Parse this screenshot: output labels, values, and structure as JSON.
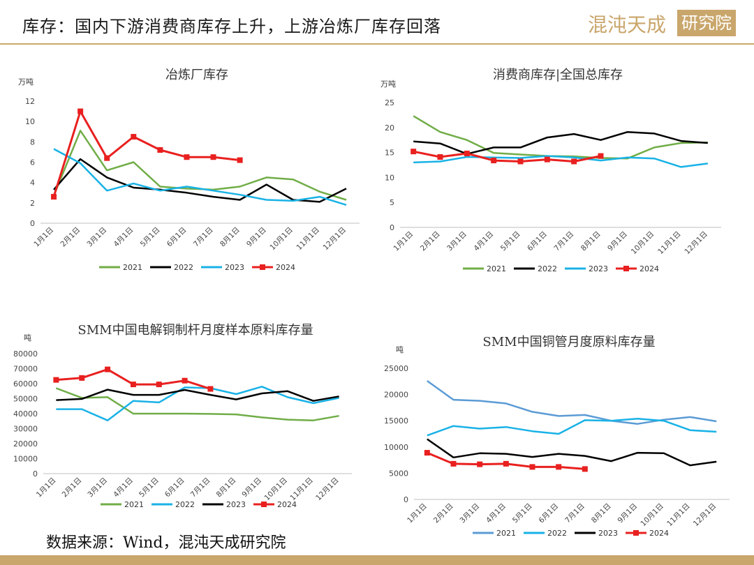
{
  "header": {
    "title": "库存：国内下游消费商库存上升，上游冶炼厂库存回落",
    "logo_text": "混沌天成研究院"
  },
  "footer": {
    "source": "数据来源：Wind，混沌天成研究院"
  },
  "colors": {
    "2021": "#70ad47",
    "2021b": "#5b9bd5",
    "2022": "#000000",
    "2023": "#19b2e6",
    "2024": "#e8201f",
    "gold": "#c9a66b"
  },
  "chart_data": [
    {
      "id": "smelter",
      "type": "line",
      "title": "冶炼厂库存",
      "unit": "万吨",
      "categories": [
        "1月1日",
        "2月1日",
        "3月1日",
        "4月1日",
        "5月1日",
        "6月1日",
        "7月1日",
        "8月1日",
        "9月1日",
        "10月1日",
        "11月1日",
        "12月1日"
      ],
      "ylim": [
        0,
        12
      ],
      "yticks": [
        0,
        2,
        4,
        6,
        8,
        10,
        12
      ],
      "legend": "bottom",
      "series": [
        {
          "name": "2021",
          "color": "#70ad47",
          "marker": false,
          "values": [
            2.7,
            9.1,
            5.2,
            6.0,
            3.6,
            3.4,
            3.3,
            3.6,
            4.5,
            4.3,
            3.1,
            2.3
          ]
        },
        {
          "name": "2022",
          "color": "#000000",
          "marker": false,
          "values": [
            3.3,
            6.3,
            4.5,
            3.5,
            3.3,
            3.0,
            2.6,
            2.3,
            3.8,
            2.3,
            2.1,
            3.4
          ]
        },
        {
          "name": "2023",
          "color": "#19b2e6",
          "marker": false,
          "values": [
            7.3,
            5.9,
            3.2,
            3.9,
            3.2,
            3.6,
            3.2,
            2.8,
            2.3,
            2.2,
            2.6,
            1.8
          ]
        },
        {
          "name": "2024",
          "color": "#e8201f",
          "marker": true,
          "values": [
            2.6,
            11.0,
            6.4,
            8.5,
            7.2,
            6.5,
            6.5,
            6.2,
            null,
            null,
            null,
            null
          ]
        }
      ]
    },
    {
      "id": "consumer",
      "type": "line",
      "title": "消费商库存|全国总库存",
      "unit": "万吨",
      "categories": [
        "1月1日",
        "2月1日",
        "3月1日",
        "4月1日",
        "5月1日",
        "6月1日",
        "7月1日",
        "8月1日",
        "9月1日",
        "10月1日",
        "11月1日",
        "12月1日"
      ],
      "ylim": [
        0,
        25
      ],
      "yticks": [
        0,
        5,
        10,
        15,
        20,
        25
      ],
      "legend": "bottom",
      "series": [
        {
          "name": "2021",
          "color": "#70ad47",
          "marker": false,
          "values": [
            22.3,
            19.1,
            17.5,
            14.9,
            14.6,
            14.3,
            14.2,
            13.9,
            13.8,
            16.0,
            16.9,
            17.0
          ]
        },
        {
          "name": "2022",
          "color": "#000000",
          "marker": false,
          "values": [
            17.2,
            16.8,
            14.7,
            16.0,
            16.0,
            18.0,
            18.7,
            17.5,
            19.1,
            18.8,
            17.3,
            16.9
          ]
        },
        {
          "name": "2023",
          "color": "#19b2e6",
          "marker": false,
          "values": [
            13.0,
            13.2,
            14.1,
            14.0,
            13.9,
            14.3,
            14.0,
            13.4,
            14.0,
            13.8,
            12.1,
            12.8
          ]
        },
        {
          "name": "2024",
          "color": "#e8201f",
          "marker": true,
          "values": [
            15.2,
            14.1,
            14.8,
            13.4,
            13.2,
            13.6,
            13.2,
            14.3,
            null,
            null,
            null,
            null
          ]
        }
      ]
    },
    {
      "id": "rod",
      "type": "line",
      "title": "SMM中国电解铜制杆月度样本原料库存量",
      "unit": "吨",
      "categories": [
        "1月1日",
        "2月1日",
        "3月1日",
        "4月1日",
        "5月1日",
        "6月1日",
        "7月1日",
        "8月1日",
        "9月1日",
        "10月1日",
        "11月1日",
        "12月1日"
      ],
      "ylim": [
        0,
        80000
      ],
      "yticks": [
        0,
        10000,
        20000,
        30000,
        40000,
        50000,
        60000,
        70000,
        80000
      ],
      "legend": "bottom",
      "series": [
        {
          "name": "2021",
          "color": "#70ad47",
          "marker": false,
          "values": [
            57000,
            50500,
            51000,
            40000,
            40000,
            40000,
            39800,
            39500,
            37500,
            36000,
            35500,
            38500
          ]
        },
        {
          "name": "2022",
          "color": "#19b2e6",
          "marker": false,
          "values": [
            43000,
            43000,
            35500,
            48500,
            47500,
            57500,
            57000,
            53000,
            58000,
            51000,
            47000,
            50500
          ]
        },
        {
          "name": "2023",
          "color": "#000000",
          "marker": false,
          "values": [
            49000,
            49800,
            56000,
            52500,
            52500,
            55800,
            52500,
            49500,
            53500,
            55000,
            48500,
            51500
          ]
        },
        {
          "name": "2024",
          "color": "#e8201f",
          "marker": true,
          "values": [
            62500,
            63800,
            69500,
            59500,
            59500,
            62000,
            56500,
            null,
            null,
            null,
            null,
            null
          ]
        }
      ]
    },
    {
      "id": "tube",
      "type": "line",
      "title": "SMM中国铜管月度原料库存量",
      "unit": "吨",
      "categories": [
        "1月1日",
        "2月1日",
        "3月1日",
        "4月1日",
        "5月1日",
        "6月1日",
        "7月1日",
        "8月1日",
        "9月1日",
        "10月1日",
        "11月1日",
        "12月1日"
      ],
      "ylim": [
        0,
        25000
      ],
      "yticks": [
        0,
        5000,
        10000,
        15000,
        20000,
        25000
      ],
      "legend": "bottom",
      "series": [
        {
          "name": "2021",
          "color": "#5b9bd5",
          "marker": false,
          "values": [
            22600,
            19000,
            18800,
            18300,
            16700,
            15900,
            16100,
            15000,
            14400,
            15200,
            15700,
            14900
          ]
        },
        {
          "name": "2022",
          "color": "#19b2e6",
          "marker": false,
          "values": [
            12200,
            14000,
            13500,
            13800,
            13000,
            12500,
            15100,
            15000,
            15400,
            15000,
            13200,
            12900
          ]
        },
        {
          "name": "2023",
          "color": "#000000",
          "marker": false,
          "values": [
            11500,
            8000,
            8800,
            8700,
            8100,
            8700,
            8300,
            7300,
            8900,
            8800,
            6500,
            7200
          ]
        },
        {
          "name": "2024",
          "color": "#e8201f",
          "marker": true,
          "values": [
            8900,
            6800,
            6700,
            6800,
            6200,
            6200,
            5800,
            null,
            null,
            null,
            null,
            null
          ]
        }
      ]
    }
  ]
}
